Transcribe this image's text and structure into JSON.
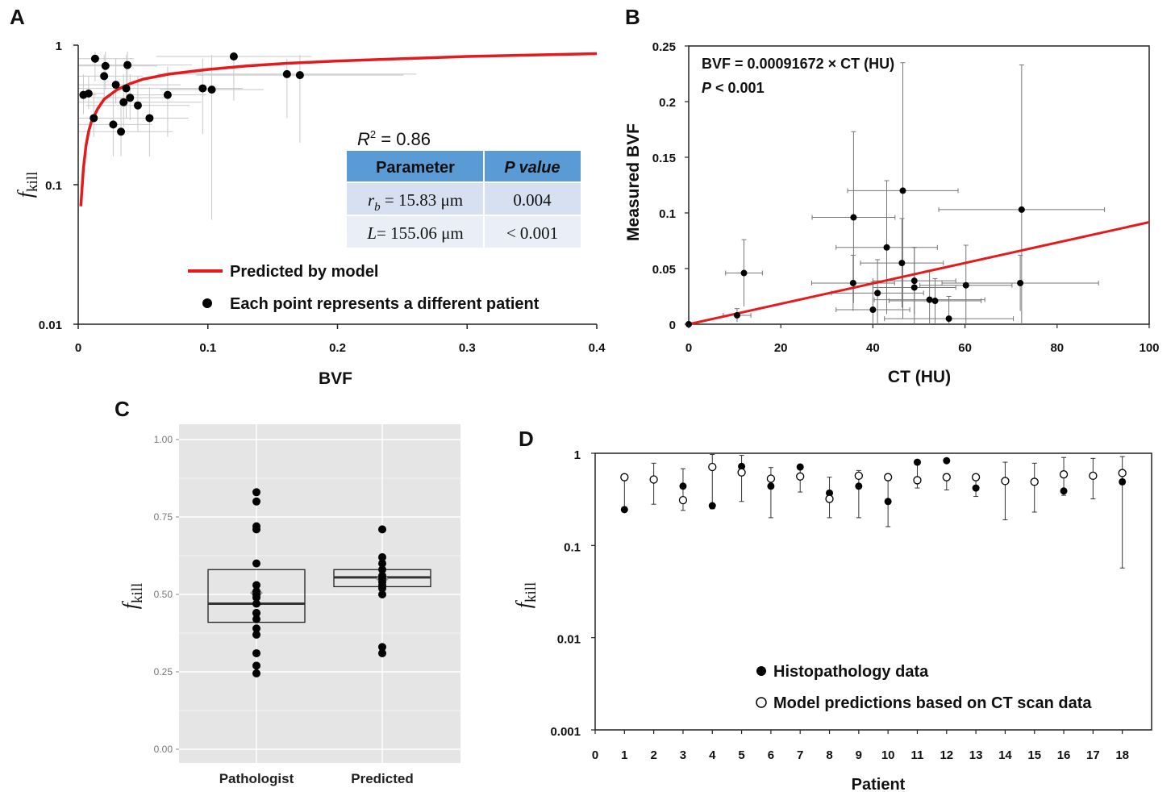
{
  "panel_labels": {
    "a": "A",
    "b": "B",
    "c": "C",
    "d": "D"
  },
  "chart_data": [
    {
      "id": "A",
      "type": "scatter",
      "xlabel": "BVF",
      "ylabel": "f",
      "ylabel_sub": "kill",
      "xlim": [
        0,
        0.4
      ],
      "ylim": [
        0.01,
        1
      ],
      "yscale": "log",
      "x_ticks": [
        0,
        0.1,
        0.2,
        0.3,
        0.4
      ],
      "y_ticks": [
        0.01,
        0.1,
        1
      ],
      "x_tick_labels": [
        "0",
        "0.1",
        "0.2",
        "0.3",
        "0.4"
      ],
      "y_tick_labels": [
        "0.01",
        "0.1",
        "1"
      ],
      "curve": {
        "name": "Predicted by model",
        "color": "#e41a1c",
        "x": [
          0.002,
          0.004,
          0.006,
          0.008,
          0.01,
          0.015,
          0.02,
          0.03,
          0.04,
          0.05,
          0.07,
          0.1,
          0.13,
          0.16,
          0.2,
          0.25,
          0.3,
          0.35,
          0.4
        ],
        "y": [
          0.07,
          0.13,
          0.19,
          0.24,
          0.28,
          0.35,
          0.41,
          0.48,
          0.53,
          0.57,
          0.62,
          0.67,
          0.71,
          0.74,
          0.77,
          0.8,
          0.83,
          0.85,
          0.87
        ]
      },
      "points": {
        "name": "Each point represents a different patient",
        "color": "#000000",
        "x": [
          0.004,
          0.008,
          0.012,
          0.013,
          0.02,
          0.021,
          0.027,
          0.029,
          0.033,
          0.035,
          0.037,
          0.038,
          0.04,
          0.046,
          0.055,
          0.069,
          0.096,
          0.103,
          0.12,
          0.161,
          0.171
        ],
        "y": [
          0.44,
          0.45,
          0.3,
          0.8,
          0.6,
          0.71,
          0.27,
          0.52,
          0.24,
          0.39,
          0.49,
          0.72,
          0.42,
          0.37,
          0.3,
          0.44,
          0.49,
          0.48,
          0.83,
          0.62,
          0.61
        ],
        "xerr": [
          0.01,
          0.012,
          0.035,
          0.03,
          0.03,
          0.04,
          0.03,
          0.05,
          0.04,
          0.06,
          0.09,
          0.05,
          0.03,
          0.04,
          0.03,
          0.03,
          0.03,
          0.04,
          0.06,
          0.1,
          0.08
        ],
        "ylo": [
          0.32,
          0.35,
          0.22,
          0.55,
          0.42,
          0.48,
          0.16,
          0.38,
          0.16,
          0.26,
          0.3,
          0.5,
          0.29,
          0.24,
          0.16,
          0.22,
          0.23,
          0.056,
          0.4,
          0.3,
          0.2
        ],
        "yhi": [
          0.62,
          0.6,
          0.45,
          0.9,
          0.85,
          0.9,
          0.45,
          0.8,
          0.42,
          0.62,
          0.85,
          0.9,
          0.62,
          0.6,
          0.5,
          0.7,
          0.8,
          0.85,
          0.9,
          0.8,
          0.85
        ]
      },
      "annotation": {
        "r2_label": "R",
        "r2_sup": "2",
        "r2_value": " = 0.86"
      },
      "table": {
        "header": [
          "Parameter",
          "P value"
        ],
        "rows": [
          {
            "param_sym": "r",
            "param_sub": "b",
            "param_val": " = 15.83 μm",
            "p": "0.004"
          },
          {
            "param_sym": "L",
            "param_sub": "",
            "param_val": "= 155.06 μm",
            "p": "< 0.001"
          }
        ],
        "header_color": "#5b9bd5",
        "row_color_1": "#d6e0f0",
        "row_color_2": "#e9eef7"
      }
    },
    {
      "id": "B",
      "type": "scatter",
      "xlabel": "CT (HU)",
      "ylabel": "Measured BVF",
      "xlim": [
        0,
        100
      ],
      "ylim": [
        0,
        0.25
      ],
      "x_ticks": [
        0,
        20,
        40,
        60,
        80,
        100
      ],
      "y_ticks": [
        0,
        0.05,
        0.1,
        0.15,
        0.2,
        0.25
      ],
      "x_tick_labels": [
        "0",
        "20",
        "40",
        "60",
        "80",
        "100"
      ],
      "y_tick_labels": [
        "0",
        "0.05",
        "0.1",
        "0.15",
        "0.2",
        "0.25"
      ],
      "equation": "BVF = 0.00091672 × CT (HU)",
      "p_label": "P",
      "p_value": " < 0.001",
      "fit": {
        "slope": 0.00091672,
        "x": [
          0,
          100
        ],
        "color": "#e41a1c"
      },
      "points": {
        "x": [
          0,
          10.5,
          12,
          35.7,
          35.8,
          40,
          41,
          43,
          46.3,
          46.5,
          49,
          49,
          52.3,
          53.5,
          56.5,
          60.2,
          72,
          72.3
        ],
        "y": [
          0,
          0.008,
          0.046,
          0.037,
          0.096,
          0.013,
          0.028,
          0.069,
          0.055,
          0.12,
          0.033,
          0.039,
          0.022,
          0.021,
          0.005,
          0.035,
          0.037,
          0.103
        ],
        "xerr": [
          0,
          3,
          4,
          9,
          9,
          8,
          10,
          11,
          9,
          12,
          9,
          9,
          12,
          10,
          14,
          10,
          17,
          18
        ],
        "yerr": [
          0,
          0.006,
          0.03,
          0.025,
          0.077,
          0.025,
          0.03,
          0.06,
          0.04,
          0.115,
          0.036,
          0.03,
          0.026,
          0.02,
          0.02,
          0.036,
          0.025,
          0.13
        ]
      }
    },
    {
      "id": "C",
      "type": "box",
      "ylabel": "f",
      "ylabel_sub": "kill",
      "ylim": [
        0,
        1
      ],
      "y_ticks": [
        0,
        0.25,
        0.5,
        0.75,
        1
      ],
      "y_tick_labels": [
        "0.00",
        "0.25",
        "0.50",
        "0.75",
        "1.00"
      ],
      "categories": [
        "Pathologist",
        "Predicted"
      ],
      "boxes": [
        {
          "q1": 0.41,
          "median": 0.47,
          "q3": 0.58,
          "mean": 0.505
        },
        {
          "q1": 0.525,
          "median": 0.555,
          "q3": 0.58,
          "mean": 0.55
        }
      ],
      "points": [
        [
          0.83,
          0.8,
          0.72,
          0.71,
          0.6,
          0.53,
          0.51,
          0.5,
          0.49,
          0.47,
          0.44,
          0.44,
          0.42,
          0.39,
          0.37,
          0.31,
          0.27,
          0.245
        ],
        [
          0.71,
          0.62,
          0.6,
          0.58,
          0.56,
          0.55,
          0.54,
          0.53,
          0.52,
          0.5,
          0.33,
          0.31
        ]
      ],
      "background": "#e5e5e5"
    },
    {
      "id": "D",
      "type": "scatter",
      "xlabel": "Patient",
      "ylabel": "f",
      "ylabel_sub": "kill",
      "yscale": "log",
      "xlim": [
        0,
        19
      ],
      "ylim": [
        0.001,
        1
      ],
      "x_ticks": [
        0,
        1,
        2,
        3,
        4,
        5,
        6,
        7,
        8,
        9,
        10,
        11,
        12,
        13,
        14,
        15,
        16,
        17,
        18
      ],
      "x_tick_labels": [
        "0",
        "1",
        "2",
        "3",
        "4",
        "5",
        "6",
        "7",
        "8",
        "9",
        "10",
        "11",
        "12",
        "13",
        "14",
        "15",
        "16",
        "17",
        "18"
      ],
      "y_ticks": [
        0.001,
        0.01,
        0.1,
        1
      ],
      "y_tick_labels": [
        "0.001",
        "0.01",
        "0.1",
        "1"
      ],
      "series": [
        {
          "name": "Histopathology data",
          "marker": "filled",
          "x": [
            1,
            3,
            4,
            5,
            6,
            7,
            8,
            9,
            10,
            11,
            12,
            13,
            16,
            18
          ],
          "values": [
            0.245,
            0.44,
            0.27,
            0.72,
            0.44,
            0.71,
            0.37,
            0.44,
            0.3,
            0.8,
            0.83,
            0.42,
            0.39,
            0.49
          ]
        },
        {
          "name": "Model predictions based on CT scan data",
          "marker": "open",
          "x": [
            1,
            2,
            3,
            4,
            5,
            6,
            7,
            8,
            9,
            10,
            11,
            12,
            13,
            14,
            15,
            16,
            17,
            18
          ],
          "values": [
            0.55,
            0.52,
            0.31,
            0.71,
            0.62,
            0.53,
            0.56,
            0.32,
            0.57,
            0.55,
            0.51,
            0.55,
            0.55,
            0.5,
            0.49,
            0.59,
            0.57,
            0.61
          ],
          "lo": [
            0.25,
            0.28,
            0.24,
            0.25,
            0.3,
            0.2,
            0.38,
            0.2,
            0.2,
            0.16,
            0.42,
            0.4,
            0.34,
            0.19,
            0.23,
            0.35,
            0.32,
            0.057
          ],
          "hi": [
            0.55,
            0.78,
            0.68,
            0.97,
            0.95,
            0.7,
            0.75,
            0.55,
            0.65,
            0.6,
            0.78,
            0.6,
            0.55,
            0.8,
            0.78,
            0.9,
            0.88,
            0.92
          ]
        }
      ]
    }
  ]
}
